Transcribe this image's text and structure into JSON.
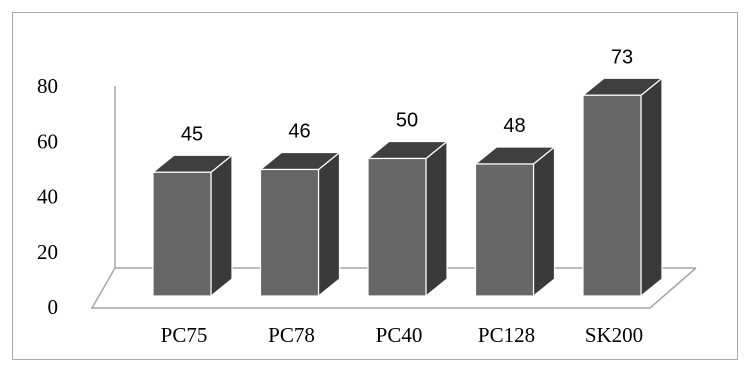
{
  "chart_data": {
    "type": "bar",
    "style": "3d-column",
    "categories": [
      "PC75",
      "PC78",
      "PC40",
      "PC128",
      "SK200"
    ],
    "values": [
      45,
      46,
      50,
      48,
      73
    ],
    "data_labels": [
      "45",
      "46",
      "50",
      "48",
      "73"
    ],
    "yticks": [
      "0",
      "20",
      "40",
      "60",
      "80"
    ],
    "ylim": [
      0,
      80
    ],
    "grid": false,
    "legend": "none",
    "colors": {
      "bar_front": "#666666",
      "bar_top": "#3f3f3f",
      "bar_side": "#3a3a3a",
      "bar_edge": "#ffffff",
      "axis": "#a6a6a6",
      "frame": "#a9a9a9"
    }
  }
}
